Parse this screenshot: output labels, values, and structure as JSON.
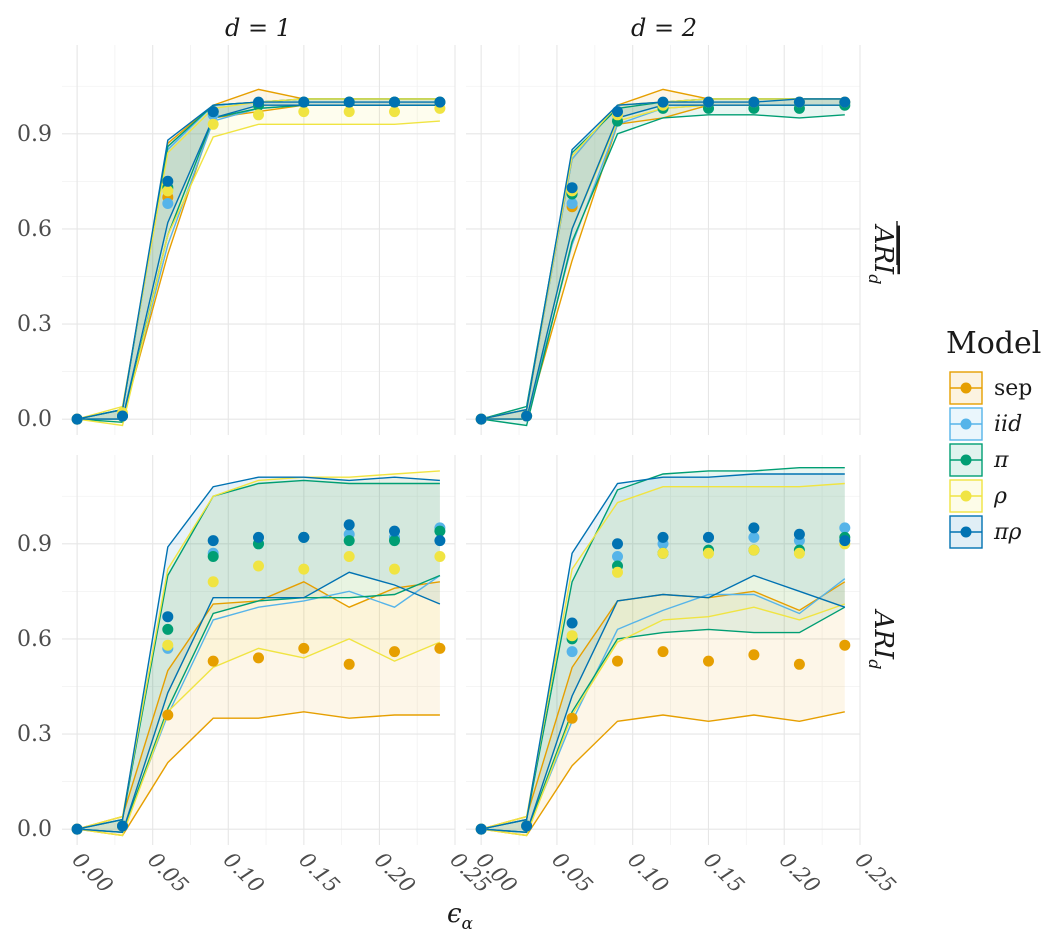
{
  "chart_data": {
    "type": "line",
    "xlabel": "ε_α",
    "x_ticks": [
      "0.00",
      "0.05",
      "0.10",
      "0.15",
      "0.20",
      "0.25"
    ],
    "y_ticks": [
      "0.0",
      "0.3",
      "0.6",
      "0.9"
    ],
    "xlim": [
      -0.01,
      0.25
    ],
    "ylim": [
      -0.05,
      1.18
    ],
    "columns": [
      {
        "id": "d1",
        "label": "d = 1"
      },
      {
        "id": "d2",
        "label": "d = 2"
      }
    ],
    "rows": [
      {
        "id": "mean",
        "label": "ARI_d (mean)"
      },
      {
        "id": "single",
        "label": "ARI_d"
      }
    ],
    "legend": {
      "title": "Model",
      "position": "right",
      "entries": [
        {
          "key": "sep",
          "label": "sep",
          "italic": false,
          "color": "#E69F00"
        },
        {
          "key": "iid",
          "label": "iid",
          "italic": true,
          "color": "#56B4E9"
        },
        {
          "key": "pi",
          "label": "π",
          "italic": true,
          "color": "#009E73"
        },
        {
          "key": "rho",
          "label": "ρ",
          "italic": true,
          "color": "#F0E442"
        },
        {
          "key": "pirho",
          "label": "πρ",
          "italic": true,
          "color": "#0072B2"
        }
      ]
    },
    "x": [
      0.0,
      0.03,
      0.06,
      0.09,
      0.12,
      0.15,
      0.18,
      0.21,
      0.24
    ],
    "panels": [
      {
        "row": "mean",
        "col": "d1",
        "series": [
          {
            "key": "sep",
            "mean": [
              0.0,
              0.01,
              0.7,
              0.97,
              0.99,
              1.0,
              1.0,
              1.0,
              1.0
            ],
            "lower": [
              0.0,
              0.0,
              0.52,
              0.95,
              0.97,
              0.99,
              0.99,
              0.99,
              0.99
            ],
            "upper": [
              0.0,
              0.03,
              0.87,
              0.99,
              1.04,
              1.01,
              1.01,
              1.01,
              1.01
            ]
          },
          {
            "key": "iid",
            "mean": [
              0.0,
              0.01,
              0.68,
              0.96,
              0.99,
              1.0,
              1.0,
              1.0,
              1.0
            ],
            "lower": [
              0.0,
              0.0,
              0.55,
              0.94,
              0.98,
              0.99,
              0.99,
              0.99,
              0.99
            ],
            "upper": [
              0.0,
              0.03,
              0.85,
              0.99,
              1.0,
              1.01,
              1.01,
              1.01,
              1.01
            ]
          },
          {
            "key": "pi",
            "mean": [
              0.0,
              0.01,
              0.73,
              0.97,
              0.99,
              1.0,
              1.0,
              1.0,
              1.0
            ],
            "lower": [
              0.0,
              -0.01,
              0.58,
              0.95,
              0.98,
              0.99,
              0.99,
              0.99,
              0.99
            ],
            "upper": [
              0.0,
              0.03,
              0.86,
              0.99,
              1.0,
              1.01,
              1.01,
              1.01,
              1.01
            ]
          },
          {
            "key": "rho",
            "mean": [
              0.0,
              0.02,
              0.72,
              0.93,
              0.96,
              0.97,
              0.97,
              0.97,
              0.98
            ],
            "lower": [
              0.0,
              -0.02,
              0.58,
              0.89,
              0.93,
              0.93,
              0.93,
              0.93,
              0.94
            ],
            "upper": [
              0.0,
              0.04,
              0.84,
              0.98,
              1.0,
              1.01,
              1.01,
              1.01,
              1.01
            ]
          },
          {
            "key": "pirho",
            "mean": [
              0.0,
              0.01,
              0.75,
              0.97,
              1.0,
              1.0,
              1.0,
              1.0,
              1.0
            ],
            "lower": [
              0.0,
              0.0,
              0.62,
              0.95,
              0.99,
              0.99,
              0.99,
              0.99,
              0.99
            ],
            "upper": [
              0.0,
              0.03,
              0.88,
              0.99,
              1.0,
              1.0,
              1.0,
              1.0,
              1.0
            ]
          }
        ]
      },
      {
        "row": "mean",
        "col": "d2",
        "series": [
          {
            "key": "sep",
            "mean": [
              0.0,
              0.01,
              0.67,
              0.96,
              0.99,
              1.0,
              1.0,
              1.0,
              1.0
            ],
            "lower": [
              0.0,
              0.0,
              0.5,
              0.93,
              0.95,
              0.99,
              0.99,
              0.99,
              0.99
            ],
            "upper": [
              0.0,
              0.03,
              0.82,
              0.99,
              1.04,
              1.01,
              1.01,
              1.01,
              1.01
            ]
          },
          {
            "key": "iid",
            "mean": [
              0.0,
              0.01,
              0.68,
              0.96,
              0.99,
              1.0,
              1.0,
              1.0,
              1.0
            ],
            "lower": [
              0.0,
              0.0,
              0.55,
              0.93,
              0.98,
              0.99,
              0.99,
              0.99,
              0.99
            ],
            "upper": [
              0.0,
              0.03,
              0.82,
              0.99,
              1.0,
              1.01,
              1.01,
              1.01,
              1.01
            ]
          },
          {
            "key": "pi",
            "mean": [
              0.0,
              0.01,
              0.71,
              0.94,
              0.98,
              0.98,
              0.98,
              0.98,
              0.99
            ],
            "lower": [
              0.0,
              -0.02,
              0.56,
              0.9,
              0.95,
              0.96,
              0.96,
              0.95,
              0.96
            ],
            "upper": [
              0.0,
              0.04,
              0.84,
              0.98,
              1.0,
              1.01,
              1.01,
              1.01,
              1.01
            ]
          },
          {
            "key": "rho",
            "mean": [
              0.0,
              0.01,
              0.72,
              0.96,
              0.99,
              1.0,
              1.0,
              1.0,
              1.0
            ],
            "lower": [
              0.0,
              0.0,
              0.6,
              0.94,
              0.98,
              0.99,
              0.99,
              0.99,
              0.99
            ],
            "upper": [
              0.0,
              0.03,
              0.83,
              0.99,
              1.0,
              1.01,
              1.01,
              1.01,
              1.01
            ]
          },
          {
            "key": "pirho",
            "mean": [
              0.0,
              0.01,
              0.73,
              0.97,
              1.0,
              1.0,
              1.0,
              1.0,
              1.0
            ],
            "lower": [
              0.0,
              0.0,
              0.6,
              0.95,
              0.99,
              0.99,
              0.99,
              0.99,
              0.99
            ],
            "upper": [
              0.0,
              0.03,
              0.85,
              0.99,
              1.0,
              1.0,
              1.0,
              1.01,
              1.01
            ]
          }
        ]
      },
      {
        "row": "single",
        "col": "d1",
        "series": [
          {
            "key": "sep",
            "mean": [
              0.0,
              0.01,
              0.36,
              0.53,
              0.54,
              0.57,
              0.52,
              0.56,
              0.57
            ],
            "lower": [
              0.0,
              -0.02,
              0.21,
              0.35,
              0.35,
              0.37,
              0.35,
              0.36,
              0.36
            ],
            "upper": [
              0.0,
              0.04,
              0.5,
              0.71,
              0.72,
              0.78,
              0.7,
              0.76,
              0.78
            ]
          },
          {
            "key": "iid",
            "mean": [
              0.0,
              0.01,
              0.57,
              0.87,
              0.9,
              0.92,
              0.93,
              0.92,
              0.95
            ],
            "lower": [
              0.0,
              -0.01,
              0.36,
              0.66,
              0.7,
              0.72,
              0.75,
              0.7,
              0.8
            ]
          },
          {
            "key": "pi",
            "mean": [
              0.0,
              0.01,
              0.63,
              0.86,
              0.9,
              0.92,
              0.91,
              0.91,
              0.94
            ],
            "lower": [
              0.0,
              -0.01,
              0.38,
              0.68,
              0.72,
              0.73,
              0.73,
              0.74,
              0.8
            ],
            "upper": [
              0.0,
              0.03,
              0.8,
              1.05,
              1.09,
              1.1,
              1.09,
              1.09,
              1.09
            ]
          },
          {
            "key": "rho",
            "mean": [
              0.0,
              0.01,
              0.58,
              0.78,
              0.83,
              0.82,
              0.86,
              0.82,
              0.86
            ],
            "lower": [
              0.0,
              -0.02,
              0.37,
              0.51,
              0.57,
              0.54,
              0.6,
              0.53,
              0.59
            ],
            "upper": [
              0.0,
              0.04,
              0.82,
              1.05,
              1.1,
              1.11,
              1.11,
              1.12,
              1.13
            ]
          },
          {
            "key": "pirho",
            "mean": [
              0.0,
              0.01,
              0.67,
              0.91,
              0.92,
              0.92,
              0.96,
              0.94,
              0.91
            ],
            "lower": [
              0.0,
              -0.01,
              0.43,
              0.73,
              0.73,
              0.73,
              0.81,
              0.77,
              0.71
            ],
            "upper": [
              0.0,
              0.03,
              0.89,
              1.08,
              1.11,
              1.11,
              1.1,
              1.11,
              1.1
            ]
          }
        ]
      },
      {
        "row": "single",
        "col": "d2",
        "series": [
          {
            "key": "sep",
            "mean": [
              0.0,
              0.01,
              0.35,
              0.53,
              0.56,
              0.53,
              0.55,
              0.52,
              0.58
            ],
            "lower": [
              0.0,
              -0.02,
              0.2,
              0.34,
              0.36,
              0.34,
              0.36,
              0.34,
              0.37
            ],
            "upper": [
              0.0,
              0.04,
              0.51,
              0.72,
              0.74,
              0.73,
              0.75,
              0.69,
              0.78
            ]
          },
          {
            "key": "iid",
            "mean": [
              0.0,
              0.01,
              0.56,
              0.86,
              0.9,
              0.92,
              0.92,
              0.91,
              0.95
            ],
            "lower": [
              0.0,
              -0.01,
              0.34,
              0.63,
              0.69,
              0.74,
              0.74,
              0.68,
              0.79
            ]
          },
          {
            "key": "pi",
            "mean": [
              0.0,
              0.01,
              0.6,
              0.83,
              0.87,
              0.88,
              0.88,
              0.88,
              0.92
            ],
            "lower": [
              0.0,
              -0.01,
              0.37,
              0.6,
              0.62,
              0.63,
              0.62,
              0.62,
              0.7
            ],
            "upper": [
              0.0,
              0.03,
              0.78,
              1.07,
              1.12,
              1.13,
              1.13,
              1.14,
              1.14
            ]
          },
          {
            "key": "rho",
            "mean": [
              0.0,
              0.01,
              0.61,
              0.81,
              0.87,
              0.87,
              0.88,
              0.87,
              0.9
            ],
            "lower": [
              0.0,
              -0.02,
              0.36,
              0.59,
              0.66,
              0.67,
              0.7,
              0.66,
              0.71
            ],
            "upper": [
              0.0,
              0.04,
              0.82,
              1.03,
              1.08,
              1.08,
              1.08,
              1.08,
              1.09
            ]
          },
          {
            "key": "pirho",
            "mean": [
              0.0,
              0.01,
              0.65,
              0.9,
              0.92,
              0.92,
              0.95,
              0.93,
              0.91
            ],
            "lower": [
              0.0,
              -0.01,
              0.42,
              0.72,
              0.74,
              0.73,
              0.8,
              0.75,
              0.7
            ],
            "upper": [
              0.0,
              0.03,
              0.87,
              1.09,
              1.11,
              1.11,
              1.12,
              1.12,
              1.12
            ]
          }
        ]
      }
    ]
  }
}
